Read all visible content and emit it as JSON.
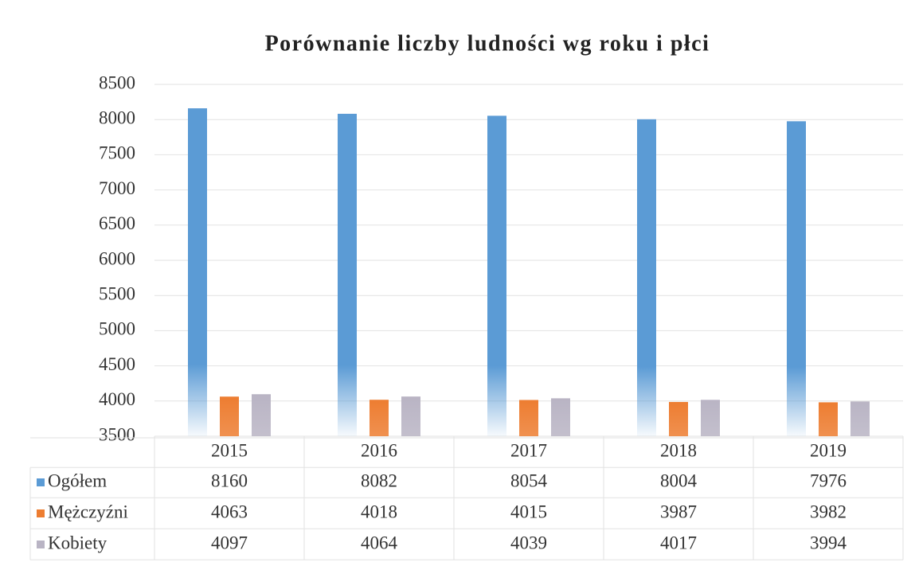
{
  "chart_data": {
    "type": "bar",
    "title": "Porównanie liczby ludności wg roku i płci",
    "categories": [
      "2015",
      "2016",
      "2017",
      "2018",
      "2019"
    ],
    "series": [
      {
        "name": "Ogółem",
        "color": "#5b9bd5",
        "values": [
          8160,
          8082,
          8054,
          8004,
          7976
        ]
      },
      {
        "name": "Mężczyźni",
        "color": "#ed7d31",
        "values": [
          4063,
          4018,
          4015,
          3987,
          3982
        ]
      },
      {
        "name": "Kobiety",
        "color": "#b9b4c4",
        "values": [
          4097,
          4064,
          4039,
          4017,
          3994
        ]
      }
    ],
    "ylim": [
      3500,
      8500
    ],
    "yticks": [
      3500,
      4000,
      4500,
      5000,
      5500,
      6000,
      6500,
      7000,
      7500,
      8000,
      8500
    ],
    "grid": true
  }
}
